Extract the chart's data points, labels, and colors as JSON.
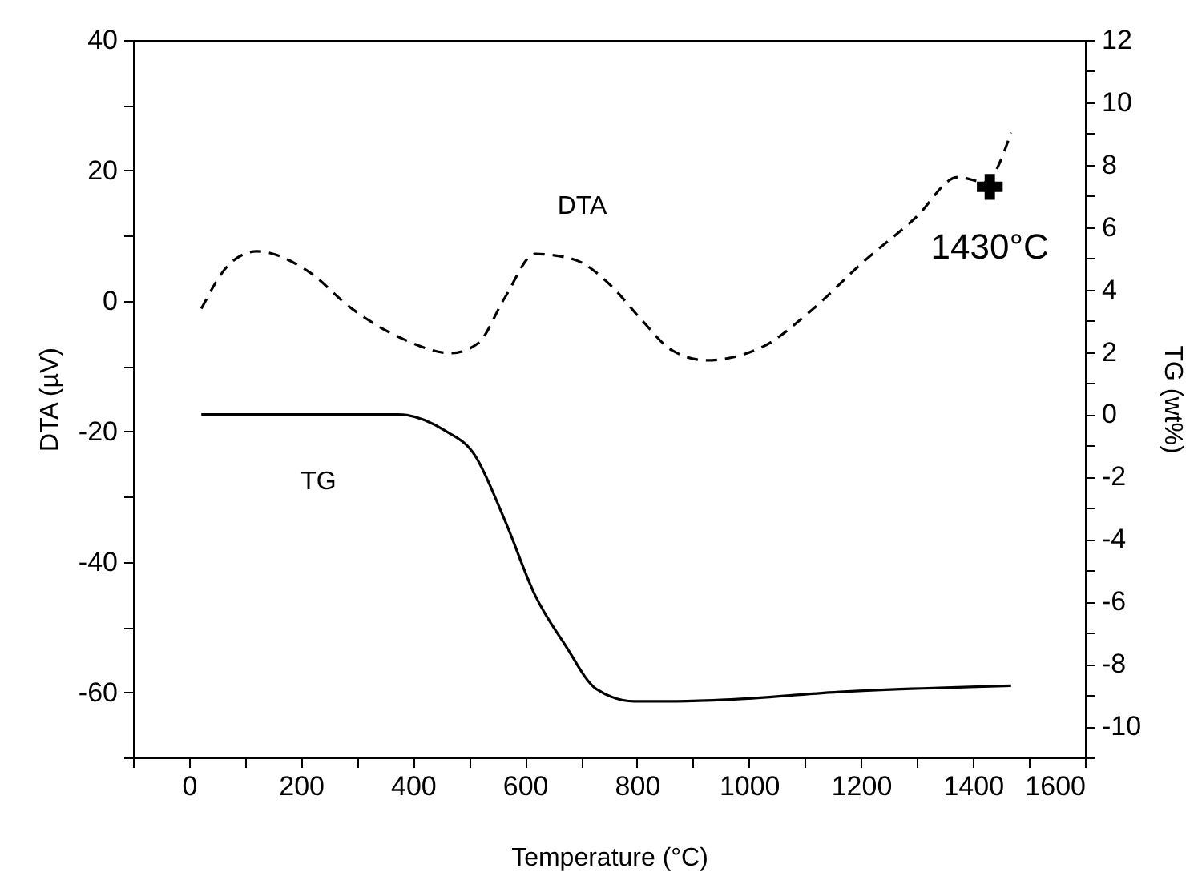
{
  "chart_data": {
    "type": "line",
    "xlabel": "Temperature (°C)",
    "ylabel": "DTA (µV)",
    "y2label": "TG (wt%)",
    "xlim": [
      -100,
      1600
    ],
    "xticks": [
      {
        "value": -100,
        "label": null
      },
      0,
      {
        "value": 100,
        "label": null
      },
      200,
      {
        "value": 300,
        "label": null
      },
      400,
      {
        "value": 500,
        "label": null
      },
      600,
      {
        "value": 700,
        "label": null
      },
      800,
      {
        "value": 900,
        "label": null
      },
      1000,
      {
        "value": 1100,
        "label": null
      },
      1200,
      {
        "value": 1300,
        "label": null
      },
      1400,
      {
        "value": 1500,
        "label": null
      },
      1600
    ],
    "ylim": [
      -70,
      40
    ],
    "yticks": [
      {
        "value": -70,
        "label": null
      },
      -60,
      {
        "value": -50,
        "label": null
      },
      -40,
      {
        "value": -30,
        "label": null
      },
      -20,
      {
        "value": -10,
        "label": null
      },
      0,
      {
        "value": 10,
        "label": null
      },
      20,
      {
        "value": 30,
        "label": null
      },
      40
    ],
    "y2lim": [
      -11,
      12
    ],
    "y2ticks": [
      {
        "value": -11,
        "label": null
      },
      -10,
      {
        "value": -9,
        "label": null
      },
      -8,
      {
        "value": -7,
        "label": null
      },
      -6,
      {
        "value": -5,
        "label": null
      },
      -4,
      {
        "value": -3,
        "label": null
      },
      -2,
      {
        "value": -1,
        "label": null
      },
      0,
      {
        "value": 1,
        "label": null
      },
      2,
      {
        "value": 3,
        "label": null
      },
      4,
      {
        "value": 5,
        "label": null
      },
      6,
      {
        "value": 7,
        "label": null
      },
      8,
      {
        "value": 9,
        "label": null
      },
      10,
      {
        "value": 11,
        "label": null
      },
      12
    ],
    "grid": false,
    "annotations": [
      {
        "text": "1430°C",
        "x": 1430,
        "y": 17.5
      }
    ],
    "series": [
      {
        "name": "DTA",
        "color": "#000000",
        "line_style": "dashed",
        "x": [
          22,
          74,
          121,
          210,
          291,
          384,
          468,
          516,
          564,
          618,
          686,
          754,
          808,
          863,
          924,
          1025,
          1108,
          1203,
          1298,
          1373,
          1421,
          1468
        ],
        "values": [
          -1.2,
          5.8,
          7.6,
          4.7,
          -1.2,
          -5.9,
          -8,
          -6.5,
          0.5,
          7.2,
          6.4,
          2.3,
          -2.9,
          -7.6,
          -9.1,
          -7,
          -1.7,
          5.9,
          12.8,
          19,
          18.2,
          25.8
        ]
      },
      {
        "name": "TG",
        "color": "#000000",
        "line_style": "solid",
        "axis": "y2",
        "x": [
          22,
          373,
          455,
          510,
          564,
          618,
          672,
          727,
          795,
          863,
          958,
          1162,
          1468
        ],
        "values": [
          0,
          0,
          -0.5,
          -1.3,
          -3.4,
          -5.8,
          -7.4,
          -8.8,
          -9.2,
          -9.2,
          -9.15,
          -8.9,
          -8.7
        ]
      },
      {
        "type": "scatter",
        "marker": "cross",
        "color": "#000000",
        "x": [
          1430
        ],
        "values": [
          17.5
        ]
      }
    ]
  }
}
